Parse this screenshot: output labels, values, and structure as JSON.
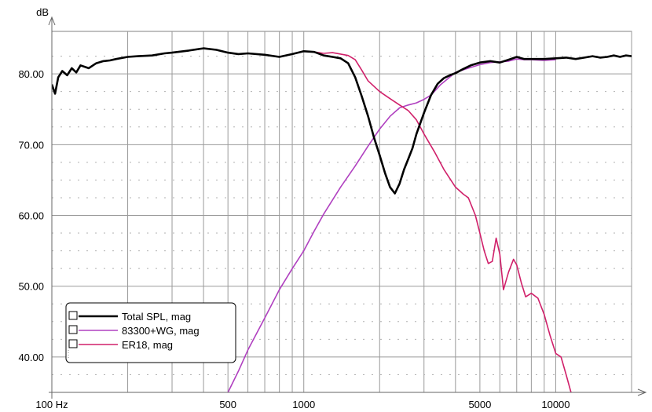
{
  "chart_data": {
    "type": "line",
    "xscale": "log",
    "xlim": [
      100,
      20000
    ],
    "ylim": [
      35,
      86
    ],
    "ylabel": "dB",
    "x_tick_labels": [
      {
        "x": 100,
        "label": "100 Hz"
      },
      {
        "x": 500,
        "label": "500"
      },
      {
        "x": 1000,
        "label": "1000"
      },
      {
        "x": 5000,
        "label": "5000"
      },
      {
        "x": 10000,
        "label": "10000"
      }
    ],
    "y_tick_labels": [
      {
        "y": 80,
        "label": "80.00"
      },
      {
        "y": 70,
        "label": "70.00"
      },
      {
        "y": 60,
        "label": "60.00"
      },
      {
        "y": 50,
        "label": "50.00"
      },
      {
        "y": 40,
        "label": "40.00"
      }
    ],
    "grid": true,
    "legend_position": "bottom-left",
    "series": [
      {
        "name": "Total SPL, mag",
        "color": "#000000",
        "x": [
          100,
          103,
          106,
          110,
          115,
          120,
          125,
          130,
          140,
          150,
          160,
          170,
          180,
          200,
          220,
          250,
          280,
          300,
          350,
          400,
          450,
          500,
          550,
          600,
          700,
          800,
          900,
          1000,
          1100,
          1200,
          1300,
          1400,
          1500,
          1600,
          1700,
          1800,
          1900,
          2000,
          2100,
          2200,
          2300,
          2400,
          2500,
          2600,
          2700,
          2800,
          3000,
          3200,
          3400,
          3600,
          3800,
          4000,
          4300,
          4600,
          5000,
          5500,
          6000,
          6500,
          7000,
          7500,
          8000,
          9000,
          10000,
          11000,
          12000,
          13000,
          14000,
          15000,
          16000,
          17000,
          18000,
          19000,
          20000
        ],
        "y": [
          78.5,
          77.2,
          79.5,
          80.4,
          79.8,
          80.8,
          80.2,
          81.2,
          80.8,
          81.5,
          81.8,
          81.9,
          82.1,
          82.4,
          82.5,
          82.6,
          82.9,
          83.0,
          83.3,
          83.6,
          83.4,
          83.0,
          82.8,
          82.9,
          82.7,
          82.4,
          82.8,
          83.2,
          83.1,
          82.6,
          82.4,
          82.2,
          81.5,
          79.5,
          76.8,
          74.0,
          71.0,
          68.5,
          66.0,
          64.0,
          63.1,
          64.5,
          66.5,
          68.0,
          69.5,
          71.5,
          74.5,
          77.0,
          78.6,
          79.4,
          79.8,
          80.1,
          80.7,
          81.2,
          81.6,
          81.8,
          81.6,
          82.0,
          82.4,
          82.1,
          82.1,
          82.1,
          82.2,
          82.3,
          82.1,
          82.3,
          82.5,
          82.3,
          82.4,
          82.6,
          82.4,
          82.6,
          82.5
        ]
      },
      {
        "name": "83300+WG, mag",
        "color": "#b040c0",
        "x": [
          500,
          550,
          600,
          700,
          800,
          900,
          1000,
          1100,
          1200,
          1400,
          1600,
          1800,
          2000,
          2200,
          2400,
          2600,
          2800,
          3000,
          3200,
          3500,
          4000,
          4500,
          5000,
          5500,
          6000,
          6500,
          7000,
          7500,
          8000,
          9000,
          10000
        ],
        "y": [
          35.0,
          38.0,
          41.0,
          45.5,
          49.5,
          52.5,
          55.0,
          57.8,
          60.2,
          64.0,
          67.0,
          69.8,
          72.2,
          74.0,
          75.2,
          75.6,
          75.9,
          76.4,
          77.0,
          78.5,
          80.2,
          80.8,
          81.3,
          81.6,
          81.7,
          81.8,
          82.1,
          82.0,
          82.0,
          81.9,
          82.0
        ]
      },
      {
        "name": "ER18, mag",
        "color": "#d0206a",
        "x": [
          1000,
          1100,
          1200,
          1300,
          1400,
          1500,
          1600,
          1700,
          1800,
          2000,
          2200,
          2400,
          2600,
          2800,
          3000,
          3300,
          3600,
          4000,
          4300,
          4500,
          4800,
          5000,
          5200,
          5400,
          5600,
          5800,
          6000,
          6200,
          6500,
          6800,
          7000,
          7300,
          7600,
          8000,
          8500,
          9000,
          9500,
          10000,
          10500,
          11000,
          11500
        ],
        "y": [
          83.2,
          83.1,
          82.9,
          83.0,
          82.8,
          82.6,
          82.0,
          80.5,
          79.0,
          77.5,
          76.5,
          75.6,
          74.8,
          73.5,
          71.5,
          69.0,
          66.5,
          64.0,
          63.0,
          62.5,
          60.0,
          57.5,
          55.0,
          53.2,
          53.5,
          56.8,
          54.5,
          49.5,
          52.0,
          53.8,
          53.0,
          50.5,
          48.5,
          49.0,
          48.3,
          46.0,
          43.0,
          40.5,
          40.0,
          37.5,
          35.0
        ]
      }
    ]
  }
}
